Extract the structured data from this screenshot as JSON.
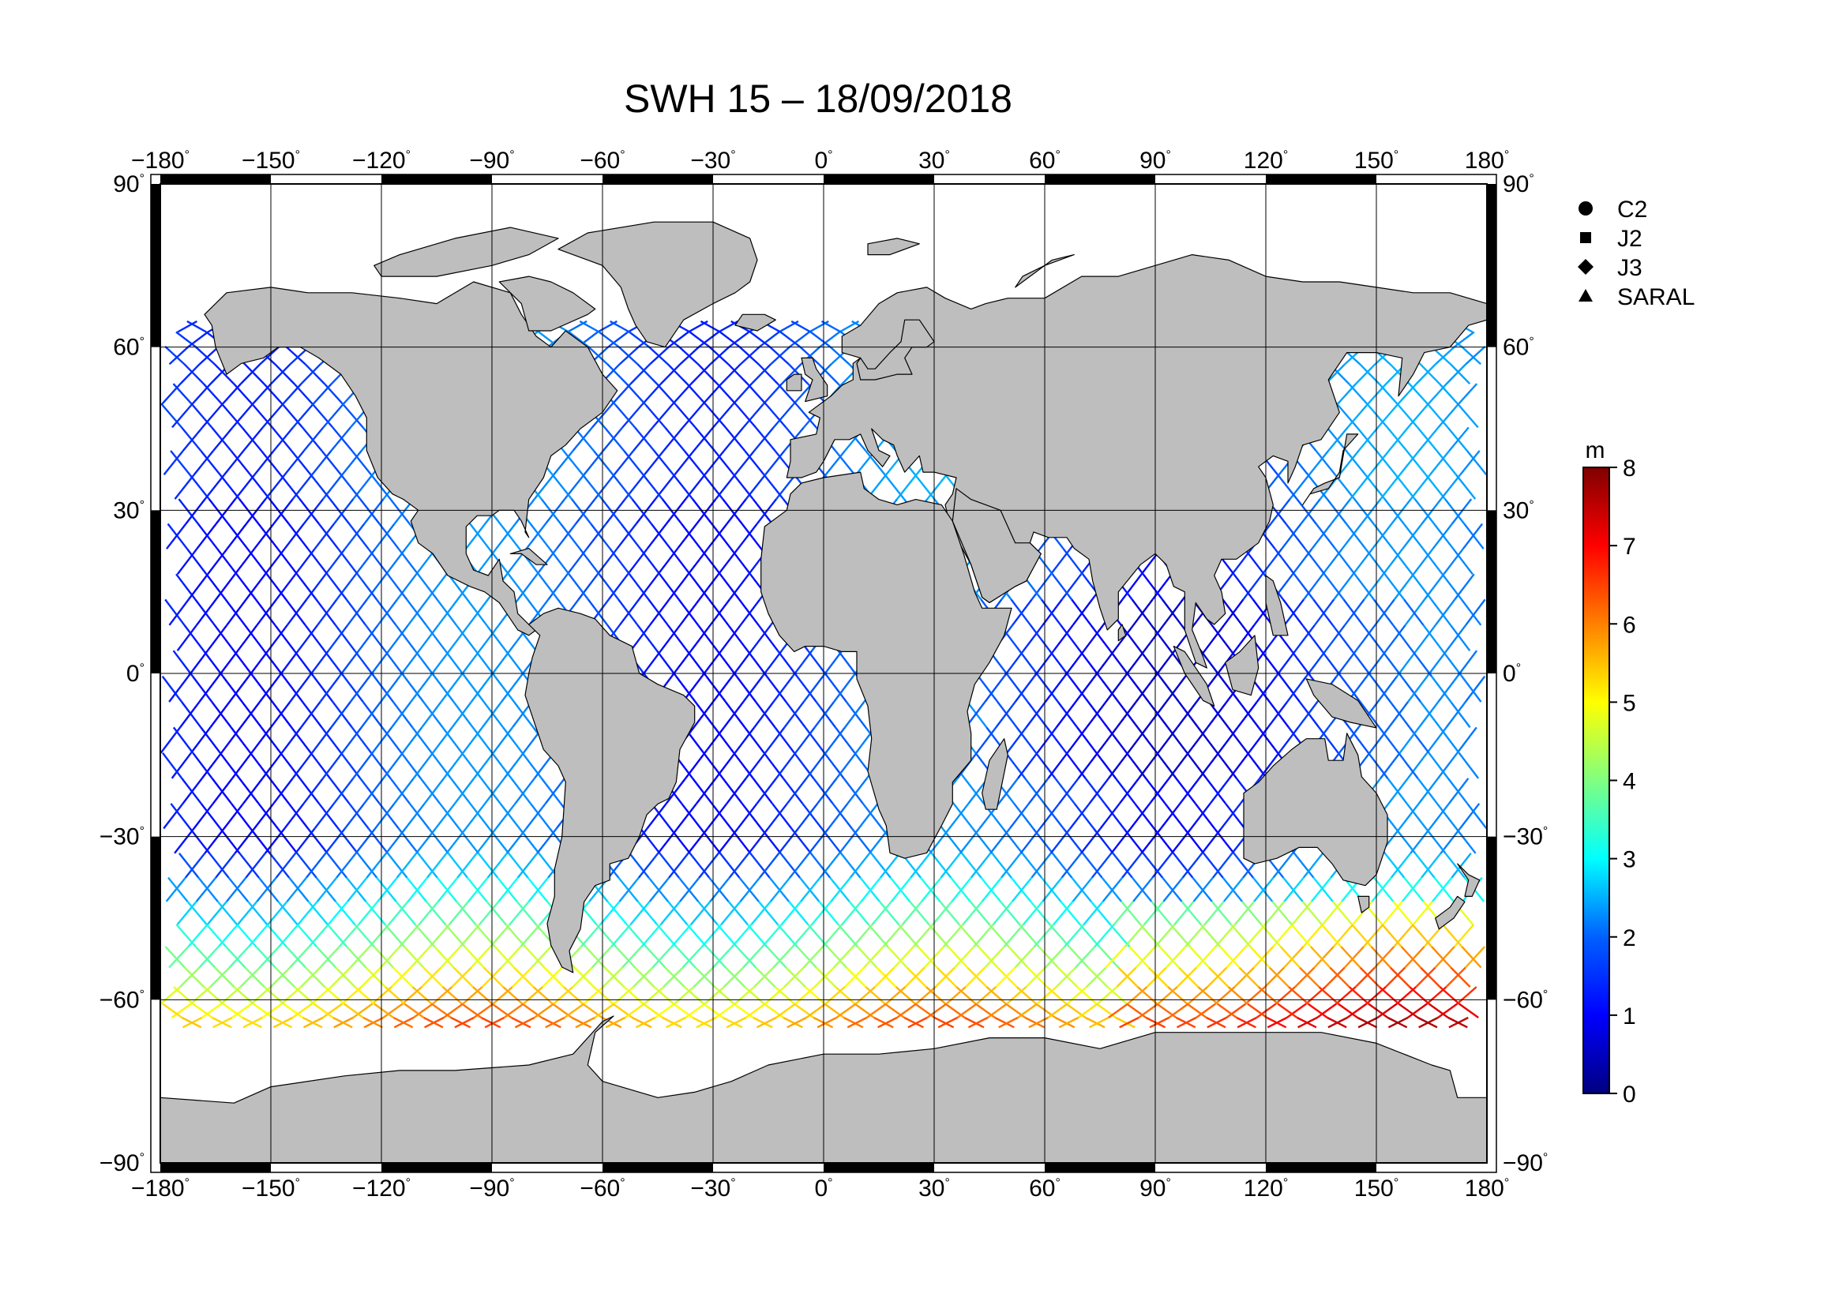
{
  "title": "SWH 15 – 18/09/2018",
  "lon_ticks": [
    "−180",
    "−150",
    "−120",
    "−90",
    "−60",
    "−30",
    "0",
    "30",
    "60",
    "90",
    "120",
    "150",
    "180"
  ],
  "lat_ticks": [
    "90",
    "60",
    "30",
    "0",
    "−30",
    "−60",
    "−90"
  ],
  "degree_symbol": "°",
  "legend": [
    {
      "label": "C2",
      "symbol": "circle-icon"
    },
    {
      "label": "J2",
      "symbol": "square-icon"
    },
    {
      "label": "J3",
      "symbol": "diamond-icon"
    },
    {
      "label": "SARAL",
      "symbol": "triangle-icon"
    }
  ],
  "colorbar": {
    "unit": "m",
    "ticks": [
      "0",
      "1",
      "2",
      "3",
      "4",
      "5",
      "6",
      "7",
      "8"
    ],
    "range": [
      0,
      8
    ],
    "colormap": [
      "#000080",
      "#0000ff",
      "#0080ff",
      "#00ffff",
      "#80ff80",
      "#ffff00",
      "#ff8000",
      "#ff0000",
      "#800000"
    ]
  },
  "colors": {
    "land": "#bebebe",
    "coast": "#000000",
    "grid": "#000000",
    "ocean": "#ffffff"
  },
  "map": {
    "projection": "equirectangular",
    "lon_range": [
      -180,
      180
    ],
    "lat_range": [
      -90,
      90
    ],
    "grid_step_deg": 30,
    "track_swh_range_m": [
      0.5,
      7.5
    ]
  }
}
